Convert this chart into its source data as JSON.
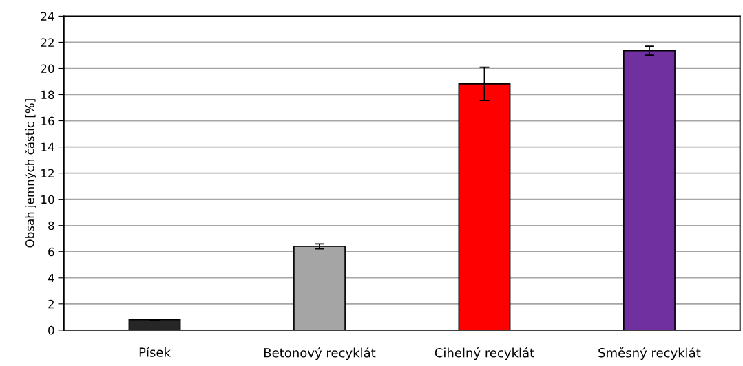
{
  "chart_data": {
    "type": "bar",
    "ylabel": "Obsah jemných částic [%]",
    "categories": [
      "Písek",
      "Betonový recyklát",
      "Cihelný recyklát",
      "Směsný recyklát"
    ],
    "values": [
      0.8,
      6.41,
      18.82,
      21.36
    ],
    "errors": [
      0.03,
      0.19,
      1.27,
      0.34
    ],
    "colors": [
      "#262626",
      "#a5a5a5",
      "#ff0000",
      "#7030a0"
    ],
    "ylim": [
      0,
      24
    ],
    "yticks": [
      0,
      2,
      4,
      6,
      8,
      10,
      12,
      14,
      16,
      18,
      20,
      22,
      24
    ],
    "grid": "y"
  }
}
